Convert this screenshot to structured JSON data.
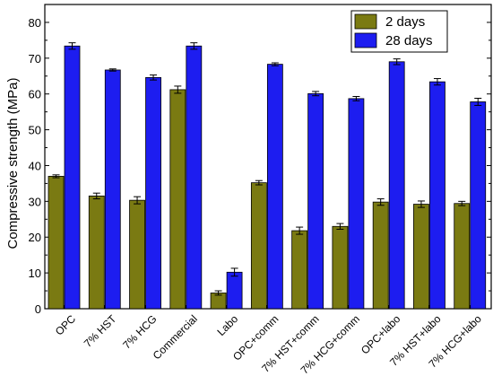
{
  "chart_data": {
    "type": "bar",
    "title": "",
    "xlabel": "",
    "ylabel": "Compressive strength (MPa)",
    "ylim": [
      0,
      85
    ],
    "yticks": [
      0,
      10,
      20,
      30,
      40,
      50,
      60,
      70,
      80
    ],
    "grid": false,
    "legend_position": "top-right",
    "categories": [
      "OPC",
      "7% HST",
      "7% HCG",
      "Commercial",
      "Labo",
      "OPC+comm",
      "7% HST+comm",
      "7% HCG+comm",
      "OPC+labo",
      "7% HST+labo",
      "7% HCG+labo"
    ],
    "series": [
      {
        "name": "2 days",
        "color": "#7a7a12",
        "values": [
          37.0,
          31.5,
          30.3,
          61.2,
          4.4,
          35.2,
          21.8,
          23.0,
          29.8,
          29.2,
          29.4
        ],
        "errors": [
          0.4,
          0.8,
          1.0,
          1.0,
          0.6,
          0.6,
          1.0,
          0.8,
          0.9,
          0.9,
          0.6
        ]
      },
      {
        "name": "28 days",
        "color": "#1d1df0",
        "values": [
          73.4,
          66.7,
          64.6,
          73.4,
          10.2,
          68.3,
          60.1,
          58.7,
          69.0,
          63.4,
          57.8
        ],
        "errors": [
          0.9,
          0.3,
          0.7,
          0.9,
          1.1,
          0.4,
          0.6,
          0.6,
          0.8,
          0.9,
          1.0
        ]
      }
    ]
  }
}
